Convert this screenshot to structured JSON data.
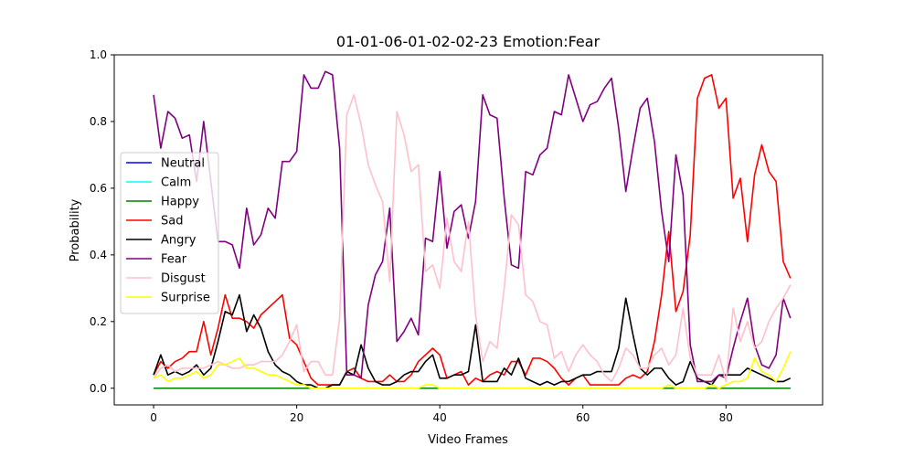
{
  "chart_data": {
    "type": "line",
    "title": "01-01-06-01-02-02-23 Emotion:Fear",
    "xlabel": "Video Frames",
    "ylabel": "Probability",
    "xlim": [
      -5.5,
      93.5
    ],
    "ylim": [
      -0.05,
      1.0
    ],
    "xticks": [
      0,
      20,
      40,
      60,
      80
    ],
    "yticks": [
      0.0,
      0.2,
      0.4,
      0.6,
      0.8,
      1.0
    ],
    "ytick_labels": [
      "0.0",
      "0.2",
      "0.4",
      "0.6",
      "0.8",
      "1.0"
    ],
    "grid": false,
    "legend_position": "center-left",
    "series": [
      {
        "name": "Neutral",
        "color": "#0000ff",
        "values": [
          0.0,
          0.0,
          0.0,
          0.0,
          0.0,
          0.0,
          0.0,
          0.0,
          0.0,
          0.0,
          0.0,
          0.0,
          0.0,
          0.0,
          0.0,
          0.0,
          0.0,
          0.0,
          0.0,
          0.0,
          0.0,
          0.0,
          0.0,
          0.0,
          0.0,
          0.0,
          0.0,
          0.0,
          0.0,
          0.0,
          0.0,
          0.0,
          0.0,
          0.0,
          0.0,
          0.0,
          0.0,
          0.0,
          0.0,
          0.0,
          0.0,
          0.0,
          0.0,
          0.0,
          0.0,
          0.0,
          0.0,
          0.0,
          0.0,
          0.0,
          0.0,
          0.0,
          0.0,
          0.0,
          0.0,
          0.0,
          0.0,
          0.0,
          0.0,
          0.0,
          0.0,
          0.0,
          0.0,
          0.0,
          0.0,
          0.0,
          0.0,
          0.0,
          0.0,
          0.0,
          0.0,
          0.0,
          0.0,
          0.0,
          0.0,
          0.0,
          0.0,
          0.0,
          0.0,
          0.0,
          0.0,
          0.0,
          0.0,
          0.0,
          0.0,
          0.0,
          0.0,
          0.0,
          0.0,
          0.0
        ]
      },
      {
        "name": "Calm",
        "color": "#00ffff",
        "values": [
          0.0,
          0.0,
          0.0,
          0.0,
          0.0,
          0.0,
          0.0,
          0.0,
          0.0,
          0.0,
          0.0,
          0.0,
          0.0,
          0.0,
          0.0,
          0.0,
          0.0,
          0.0,
          0.0,
          0.0,
          0.0,
          0.0,
          0.0,
          0.0,
          0.0,
          0.0,
          0.0,
          0.0,
          0.0,
          0.0,
          0.0,
          0.0,
          0.0,
          0.0,
          0.0,
          0.0,
          0.0,
          0.0,
          0.0,
          0.0,
          0.0,
          0.0,
          0.0,
          0.0,
          0.0,
          0.0,
          0.0,
          0.0,
          0.0,
          0.0,
          0.0,
          0.0,
          0.0,
          0.0,
          0.0,
          0.0,
          0.0,
          0.0,
          0.0,
          0.0,
          0.0,
          0.0,
          0.0,
          0.0,
          0.0,
          0.0,
          0.0,
          0.0,
          0.0,
          0.0,
          0.0,
          0.0,
          0.0,
          0.0,
          0.0,
          0.0,
          0.0,
          0.0,
          0.0,
          0.0,
          0.0,
          0.0,
          0.0,
          0.0,
          0.0,
          0.0,
          0.0,
          0.0,
          0.0,
          0.0
        ]
      },
      {
        "name": "Happy",
        "color": "#008000",
        "values": [
          0.0,
          0.0,
          0.0,
          0.0,
          0.0,
          0.0,
          0.0,
          0.0,
          0.0,
          0.0,
          0.0,
          0.0,
          0.0,
          0.0,
          0.0,
          0.0,
          0.0,
          0.0,
          0.0,
          0.0,
          0.0,
          0.0,
          0.0,
          0.0,
          0.0,
          0.0,
          0.0,
          0.0,
          0.0,
          0.0,
          0.0,
          0.0,
          0.0,
          0.0,
          0.0,
          0.0,
          0.0,
          0.0,
          0.0,
          0.0,
          0.0,
          0.0,
          0.0,
          0.0,
          0.0,
          0.0,
          0.0,
          0.0,
          0.0,
          0.0,
          0.0,
          0.0,
          0.0,
          0.0,
          0.0,
          0.0,
          0.0,
          0.0,
          0.0,
          0.0,
          0.0,
          0.0,
          0.0,
          0.0,
          0.0,
          0.0,
          0.0,
          0.0,
          0.0,
          0.0,
          0.0,
          0.0,
          0.0,
          0.0,
          0.0,
          0.0,
          0.0,
          0.0,
          0.0,
          0.0,
          0.0,
          0.0,
          0.0,
          0.0,
          0.0,
          0.0,
          0.0,
          0.0,
          0.0,
          0.0
        ]
      },
      {
        "name": "Sad",
        "color": "#ff0000",
        "values": [
          0.04,
          0.08,
          0.06,
          0.08,
          0.09,
          0.11,
          0.11,
          0.2,
          0.1,
          0.18,
          0.28,
          0.21,
          0.21,
          0.2,
          0.18,
          0.22,
          0.24,
          0.26,
          0.28,
          0.15,
          0.13,
          0.08,
          0.03,
          0.01,
          0.01,
          0.01,
          0.01,
          0.05,
          0.06,
          0.03,
          0.02,
          0.02,
          0.02,
          0.04,
          0.02,
          0.02,
          0.04,
          0.08,
          0.1,
          0.12,
          0.1,
          0.03,
          0.04,
          0.05,
          0.01,
          0.03,
          0.02,
          0.04,
          0.05,
          0.04,
          0.08,
          0.08,
          0.04,
          0.09,
          0.09,
          0.08,
          0.06,
          0.03,
          0.01,
          0.03,
          0.04,
          0.01,
          0.01,
          0.01,
          0.01,
          0.01,
          0.03,
          0.04,
          0.03,
          0.05,
          0.14,
          0.28,
          0.47,
          0.23,
          0.29,
          0.46,
          0.87,
          0.93,
          0.94,
          0.84,
          0.87,
          0.57,
          0.63,
          0.44,
          0.64,
          0.73,
          0.65,
          0.62,
          0.38,
          0.33
        ]
      },
      {
        "name": "Angry",
        "color": "#000000",
        "values": [
          0.04,
          0.1,
          0.04,
          0.05,
          0.04,
          0.05,
          0.07,
          0.04,
          0.06,
          0.14,
          0.23,
          0.22,
          0.28,
          0.17,
          0.22,
          0.18,
          0.11,
          0.07,
          0.05,
          0.04,
          0.02,
          0.01,
          0.01,
          0.0,
          0.0,
          0.01,
          0.01,
          0.05,
          0.04,
          0.13,
          0.06,
          0.02,
          0.01,
          0.01,
          0.02,
          0.04,
          0.05,
          0.05,
          0.08,
          0.1,
          0.03,
          0.03,
          0.04,
          0.04,
          0.05,
          0.19,
          0.02,
          0.02,
          0.02,
          0.06,
          0.04,
          0.09,
          0.03,
          0.02,
          0.01,
          0.02,
          0.01,
          0.02,
          0.02,
          0.03,
          0.04,
          0.04,
          0.05,
          0.05,
          0.05,
          0.12,
          0.27,
          0.16,
          0.06,
          0.04,
          0.06,
          0.06,
          0.03,
          0.01,
          0.02,
          0.08,
          0.03,
          0.02,
          0.01,
          0.04,
          0.04,
          0.04,
          0.04,
          0.06,
          0.05,
          0.04,
          0.03,
          0.02,
          0.02,
          0.03
        ]
      },
      {
        "name": "Fear",
        "color": "#800080",
        "values": [
          0.88,
          0.72,
          0.83,
          0.81,
          0.75,
          0.76,
          0.62,
          0.8,
          0.62,
          0.44,
          0.44,
          0.43,
          0.36,
          0.54,
          0.43,
          0.46,
          0.54,
          0.51,
          0.68,
          0.68,
          0.71,
          0.94,
          0.9,
          0.9,
          0.95,
          0.94,
          0.72,
          0.04,
          0.04,
          0.03,
          0.25,
          0.34,
          0.38,
          0.54,
          0.14,
          0.17,
          0.21,
          0.16,
          0.45,
          0.44,
          0.65,
          0.42,
          0.53,
          0.55,
          0.45,
          0.56,
          0.88,
          0.82,
          0.81,
          0.57,
          0.37,
          0.36,
          0.65,
          0.64,
          0.7,
          0.72,
          0.83,
          0.82,
          0.94,
          0.87,
          0.8,
          0.85,
          0.86,
          0.9,
          0.93,
          0.78,
          0.59,
          0.72,
          0.84,
          0.87,
          0.74,
          0.53,
          0.38,
          0.7,
          0.58,
          0.13,
          0.02,
          0.02,
          0.02,
          0.04,
          0.03,
          0.12,
          0.2,
          0.27,
          0.13,
          0.07,
          0.06,
          0.1,
          0.27,
          0.21
        ]
      },
      {
        "name": "Disgust",
        "color": "#ffc0cb",
        "values": [
          0.03,
          0.06,
          0.07,
          0.05,
          0.06,
          0.06,
          0.06,
          0.06,
          0.07,
          0.08,
          0.07,
          0.06,
          0.06,
          0.07,
          0.07,
          0.08,
          0.08,
          0.08,
          0.1,
          0.14,
          0.19,
          0.05,
          0.08,
          0.08,
          0.04,
          0.04,
          0.21,
          0.82,
          0.88,
          0.79,
          0.67,
          0.61,
          0.56,
          0.32,
          0.83,
          0.76,
          0.65,
          0.67,
          0.35,
          0.37,
          0.3,
          0.51,
          0.38,
          0.35,
          0.5,
          0.22,
          0.08,
          0.14,
          0.12,
          0.3,
          0.52,
          0.49,
          0.28,
          0.26,
          0.2,
          0.19,
          0.09,
          0.11,
          0.05,
          0.1,
          0.13,
          0.1,
          0.08,
          0.04,
          0.02,
          0.06,
          0.12,
          0.1,
          0.06,
          0.06,
          0.1,
          0.12,
          0.07,
          0.1,
          0.24,
          0.09,
          0.04,
          0.04,
          0.04,
          0.1,
          0.02,
          0.24,
          0.14,
          0.2,
          0.12,
          0.14,
          0.2,
          0.24,
          0.27,
          0.31
        ]
      },
      {
        "name": "Surprise",
        "color": "#ffff00",
        "values": [
          0.03,
          0.04,
          0.02,
          0.03,
          0.03,
          0.04,
          0.05,
          0.03,
          0.04,
          0.07,
          0.07,
          0.08,
          0.09,
          0.06,
          0.06,
          0.05,
          0.04,
          0.04,
          0.03,
          0.02,
          0.01,
          0.01,
          0.0,
          0.0,
          0.0,
          0.0,
          0.0,
          0.0,
          0.0,
          0.0,
          0.0,
          0.0,
          0.0,
          0.0,
          0.0,
          0.0,
          0.0,
          0.0,
          0.01,
          0.01,
          0.0,
          0.0,
          0.0,
          0.0,
          0.0,
          0.0,
          0.0,
          0.0,
          0.0,
          0.0,
          0.0,
          0.0,
          0.0,
          0.0,
          0.0,
          0.0,
          0.0,
          0.0,
          0.0,
          0.0,
          0.0,
          0.0,
          0.0,
          0.0,
          0.0,
          0.0,
          0.0,
          0.0,
          0.0,
          0.0,
          0.0,
          0.0,
          0.01,
          0.0,
          0.0,
          0.0,
          0.0,
          0.0,
          0.01,
          0.0,
          0.01,
          0.02,
          0.02,
          0.03,
          0.09,
          0.05,
          0.04,
          0.02,
          0.06,
          0.11
        ]
      }
    ]
  }
}
